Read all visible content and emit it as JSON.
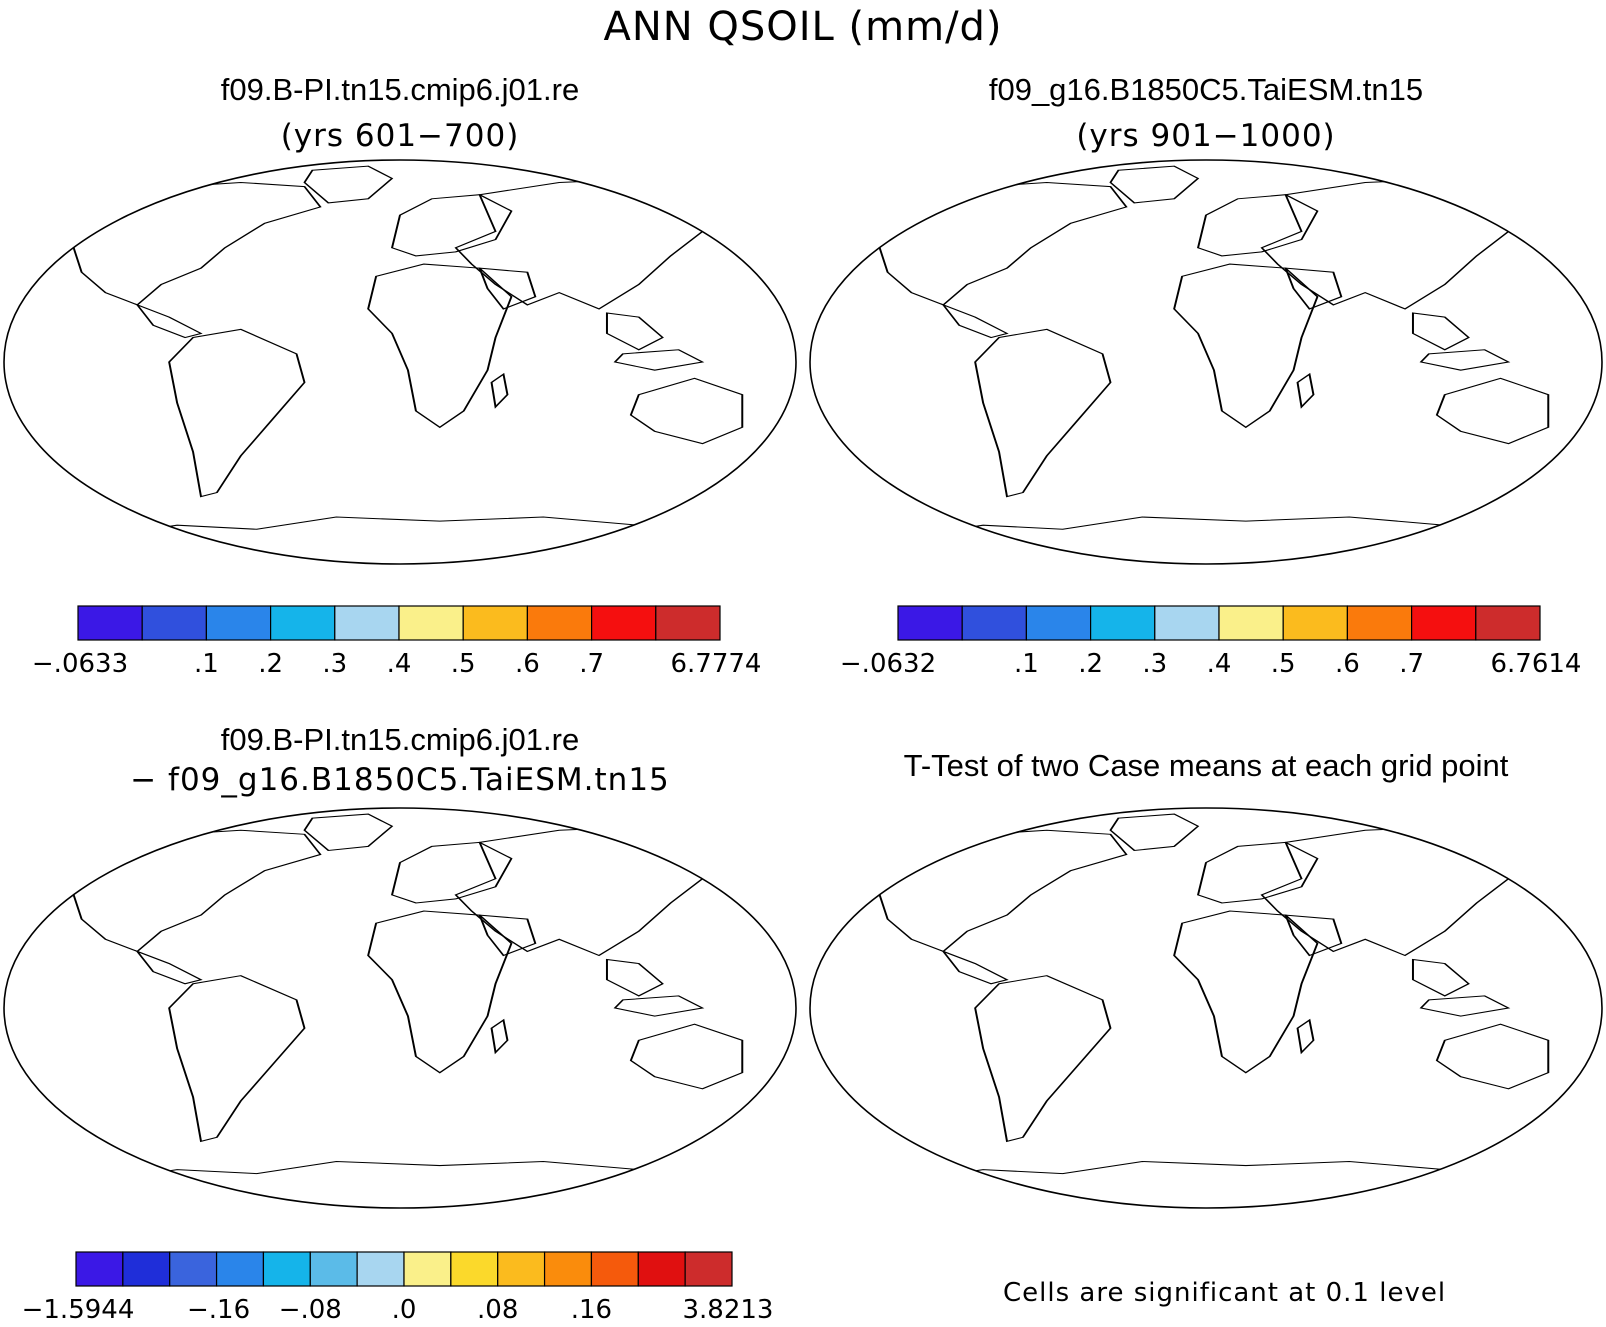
{
  "main_title": "ANN QSOIL (mm/d)",
  "colors": {
    "ten_class": [
      "#3b18e6",
      "#3050dd",
      "#2a85ea",
      "#15b4ea",
      "#a8d6f0",
      "#faf08a",
      "#fbbb1e",
      "#fa7a0c",
      "#f50f0f",
      "#cd2c2c"
    ],
    "fourteen_class": [
      "#3b18e6",
      "#1f2ed9",
      "#3a64dd",
      "#2a85ea",
      "#15b4ea",
      "#5bbbe8",
      "#a8d6f0",
      "#faf08a",
      "#fbd92b",
      "#fbbb1e",
      "#fa8c0c",
      "#f55a0c",
      "#e01010",
      "#cd2c2c"
    ],
    "significant": "#f21212"
  },
  "panels": [
    {
      "title": "f09.B-PI.tn15.cmip6.j01.re",
      "subtitle": "(yrs 601−700)",
      "colorbar_labels": [
        "−.0633",
        ".1",
        ".2",
        ".3",
        ".4",
        ".5",
        ".6",
        ".7",
        "6.7774"
      ]
    },
    {
      "title": "f09_g16.B1850C5.TaiESM.tn15",
      "subtitle": "(yrs 901−1000)",
      "colorbar_labels": [
        "−.0632",
        ".1",
        ".2",
        ".3",
        ".4",
        ".5",
        ".6",
        ".7",
        "6.7614"
      ]
    },
    {
      "title": "f09.B-PI.tn15.cmip6.j01.re",
      "subtitle": "− f09_g16.B1850C5.TaiESM.tn15",
      "colorbar_labels": [
        "−1.5944",
        "−.16",
        "−.08",
        ".0",
        ".08",
        ".16",
        "3.8213"
      ]
    },
    {
      "title": "T-Test of two Case means at each grid point",
      "footnote": "Cells are significant at 0.1 level"
    }
  ]
}
